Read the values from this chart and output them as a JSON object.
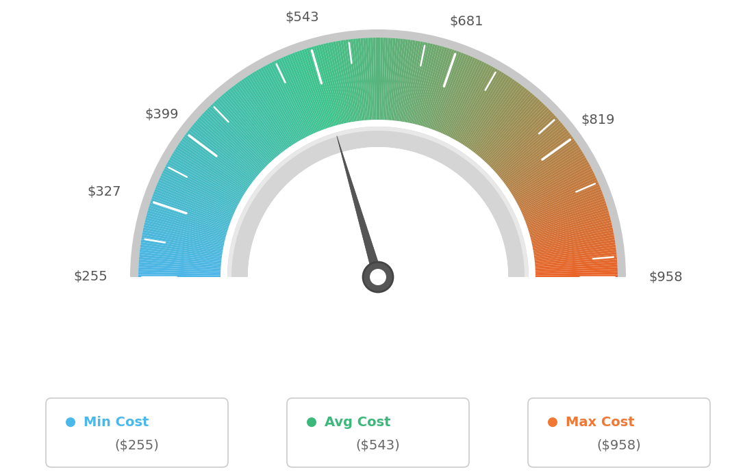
{
  "min_val": 255,
  "max_val": 958,
  "avg_val": 543,
  "labels": [
    "$255",
    "$327",
    "$399",
    "$543",
    "$681",
    "$819",
    "$958"
  ],
  "label_values": [
    255,
    327,
    399,
    543,
    681,
    819,
    958
  ],
  "color_stops": [
    {
      "val": 255,
      "rgb": [
        78,
        182,
        232
      ]
    },
    {
      "val": 543,
      "rgb": [
        62,
        195,
        140
      ]
    },
    {
      "val": 958,
      "rgb": [
        235,
        100,
        40
      ]
    }
  ],
  "needle_color": "#555555",
  "needle_outline": "#444444",
  "bg_color": "#ffffff",
  "outer_gray": "#cccccc",
  "inner_gray": "#d8d8d8",
  "inner_white": "#f5f5f5",
  "legend_items": [
    {
      "label": "Min Cost",
      "value": "($255)",
      "color": "#4ab8e8"
    },
    {
      "label": "Avg Cost",
      "value": "($543)",
      "color": "#3cb87a"
    },
    {
      "label": "Max Cost",
      "value": "($958)",
      "color": "#f07832"
    }
  ],
  "tick_label_values": [
    255,
    327,
    399,
    543,
    681,
    819,
    958
  ],
  "minor_tick_values": [
    291,
    363,
    435,
    507,
    579,
    651,
    723,
    795,
    867,
    939
  ]
}
